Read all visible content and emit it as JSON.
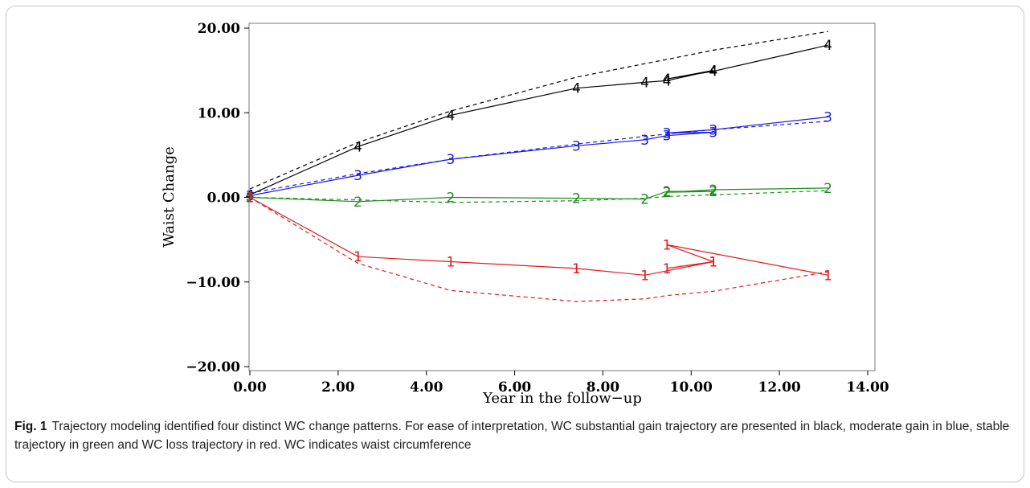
{
  "caption": {
    "label": "Fig. 1",
    "text": "Trajectory modeling identified four distinct WC change patterns. For ease of interpretation, WC substantial gain trajectory are presented in black, moderate gain in blue, stable trajectory in green and WC loss trajectory in red. WC indicates waist circumference"
  },
  "chart_data": {
    "type": "line",
    "xlabel": "Year in the follow−up",
    "ylabel": "Waist Change",
    "xlim": [
      0,
      14
    ],
    "ylim": [
      -20,
      20
    ],
    "x_ticks": [
      "0.00",
      "2.00",
      "4.00",
      "6.00",
      "8.00",
      "10.00",
      "12.00",
      "14.00"
    ],
    "y_ticks": [
      "−20.00",
      "−10.00",
      "0.00",
      "10.00",
      "20.00"
    ],
    "grid": false,
    "legend": "none",
    "series": [
      {
        "marker": "4",
        "color": "#000000",
        "observed": {
          "x": [
            0,
            2.45,
            4.55,
            7.4,
            8.95,
            9.45,
            10.5,
            9.45,
            10.5,
            13.1
          ],
          "y": [
            0.3,
            6.0,
            9.7,
            12.9,
            13.6,
            13.8,
            15.0,
            14.0,
            14.9,
            18.0
          ]
        },
        "predicted": {
          "x": [
            0,
            2.45,
            4.55,
            7.4,
            8.95,
            9.45,
            10.5,
            13.1
          ],
          "y": [
            1.0,
            6.5,
            10.2,
            14.2,
            15.8,
            16.3,
            17.4,
            19.6
          ]
        }
      },
      {
        "marker": "3",
        "color": "#1a1adb",
        "observed": {
          "x": [
            0,
            2.45,
            4.55,
            7.4,
            8.95,
            9.45,
            10.5,
            9.45,
            10.5,
            13.1
          ],
          "y": [
            0.2,
            2.6,
            4.5,
            6.1,
            6.8,
            7.3,
            7.7,
            7.6,
            8.0,
            9.5
          ]
        },
        "predicted": {
          "x": [
            0,
            2.45,
            4.55,
            7.4,
            8.95,
            9.45,
            10.5,
            13.1
          ],
          "y": [
            0.5,
            2.8,
            4.5,
            6.3,
            7.2,
            7.5,
            8.0,
            9.0
          ]
        }
      },
      {
        "marker": "2",
        "color": "#1f8c1f",
        "observed": {
          "x": [
            0,
            2.45,
            4.55,
            7.4,
            8.95,
            9.45,
            10.5,
            9.45,
            10.5,
            13.1
          ],
          "y": [
            0.0,
            -0.5,
            0.0,
            -0.1,
            -0.2,
            0.7,
            0.7,
            0.6,
            0.9,
            1.1
          ]
        },
        "predicted": {
          "x": [
            0,
            2.45,
            4.55,
            7.4,
            8.95,
            9.45,
            10.5,
            13.1
          ],
          "y": [
            0.0,
            -0.3,
            -0.6,
            -0.4,
            -0.1,
            0.1,
            0.3,
            0.8
          ]
        }
      },
      {
        "marker": "1",
        "color": "#e01b1b",
        "observed": {
          "x": [
            0,
            2.45,
            4.55,
            7.4,
            8.95,
            10.5,
            9.45,
            10.5,
            9.45,
            13.1
          ],
          "y": [
            0.0,
            -7.0,
            -7.6,
            -8.4,
            -9.2,
            -7.6,
            -8.4,
            -7.6,
            -5.6,
            -9.2
          ]
        },
        "predicted": {
          "x": [
            0,
            2.45,
            4.55,
            7.4,
            8.95,
            9.45,
            10.5,
            13.1
          ],
          "y": [
            0.0,
            -7.8,
            -11.0,
            -12.3,
            -12.0,
            -11.6,
            -11.1,
            -8.8
          ]
        }
      }
    ]
  }
}
